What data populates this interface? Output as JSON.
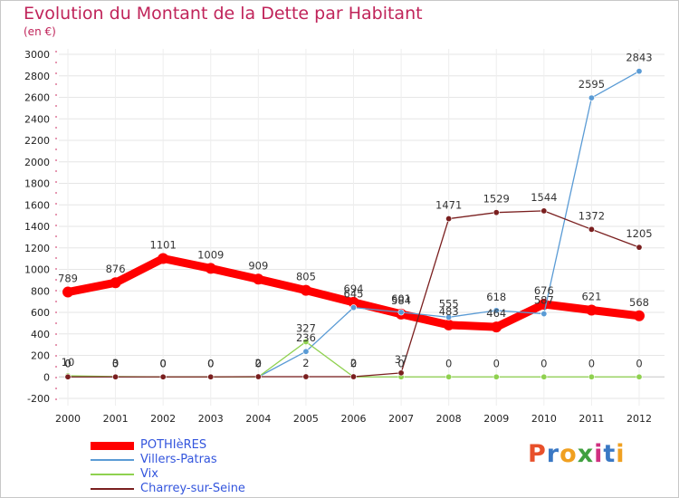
{
  "chart_data": {
    "type": "line",
    "title": "Evolution du Montant de la Dette par Habitant",
    "subtitle": "(en €)",
    "x": [
      "2000",
      "2001",
      "2002",
      "2003",
      "2004",
      "2005",
      "2006",
      "2007",
      "2008",
      "2009",
      "2010",
      "2011",
      "2012"
    ],
    "ylim": [
      -200,
      3000
    ],
    "yticks": [
      "-200",
      "0",
      "200",
      "400",
      "600",
      "800",
      "1000",
      "1200",
      "1400",
      "1600",
      "1800",
      "2000",
      "2200",
      "2400",
      "2600",
      "2800",
      "3000"
    ],
    "grid": true,
    "legend_position": "bottom-left",
    "series": [
      {
        "name": "POTHIèRES",
        "color": "#ff0000",
        "values": [
          789,
          876,
          1101,
          1009,
          909,
          805,
          694,
          584,
          483,
          464,
          676,
          621,
          568
        ],
        "labels": [
          "789",
          "876",
          "1101",
          "1009",
          "909",
          "805",
          "694",
          "584",
          "483",
          "464",
          "676",
          "621",
          "568"
        ]
      },
      {
        "name": "Villers-Patras",
        "color": "#5a9bd5",
        "values": [
          0,
          0,
          0,
          0,
          0,
          236,
          645,
          601,
          555,
          618,
          587,
          2595,
          2843
        ],
        "labels": [
          "0",
          "0",
          "0",
          "0",
          "0",
          "236",
          "645",
          "601",
          "555",
          "618",
          "587",
          "2595",
          "2843"
        ]
      },
      {
        "name": "Vix",
        "color": "#8fd14f",
        "values": [
          10,
          3,
          0,
          0,
          0,
          327,
          0,
          0,
          0,
          0,
          0,
          0,
          0
        ],
        "labels": [
          "10",
          "3",
          "0",
          "0",
          "0",
          "327",
          "0",
          "0",
          "0",
          "0",
          "0",
          "0",
          "0"
        ]
      },
      {
        "name": "Charrey-sur-Seine",
        "color": "#7a1f1f",
        "values": [
          0,
          0,
          0,
          0,
          2,
          2,
          2,
          37,
          1471,
          1529,
          1544,
          1372,
          1205
        ],
        "labels": [
          "0",
          "0",
          "0",
          "0",
          "2",
          "2",
          "2",
          "37",
          "1471",
          "1529",
          "1544",
          "1372",
          "1205"
        ]
      }
    ]
  },
  "logo": {
    "letters": [
      "P",
      "r",
      "o",
      "x",
      "i",
      "t",
      "i"
    ],
    "colors": [
      "#e8502a",
      "#3a78c4",
      "#f0a020",
      "#40a040",
      "#d03080",
      "#3a78c4",
      "#f0a020"
    ]
  }
}
